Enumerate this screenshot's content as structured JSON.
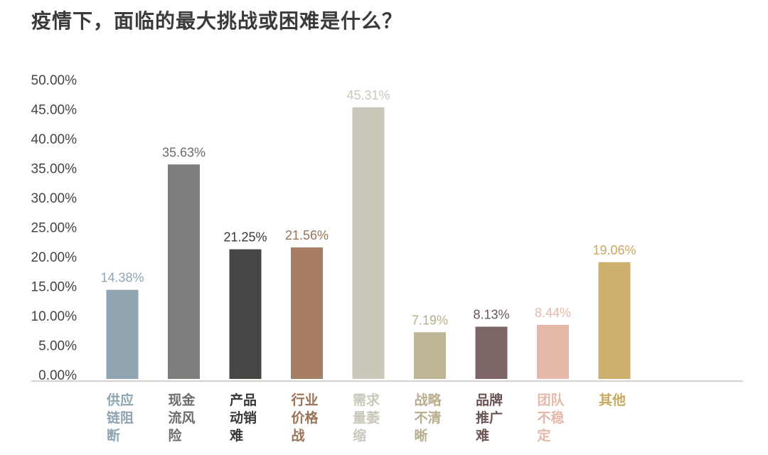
{
  "chart_data": {
    "type": "bar",
    "title": "疫情下，面临的最大挑战或困难是什么？",
    "categories": [
      "供应链阻断",
      "现金流风险",
      "产品动销难",
      "行业价格战",
      "需求量萎缩",
      "战略不清晰",
      "品牌推广难",
      "团队不稳定",
      "其他"
    ],
    "category_lines": [
      [
        "供应",
        "链阻",
        "断"
      ],
      [
        "现金",
        "流风",
        "险"
      ],
      [
        "产品",
        "动销",
        "难"
      ],
      [
        "行业",
        "价格",
        "战"
      ],
      [
        "需求",
        "量萎",
        "缩"
      ],
      [
        "战略",
        "不清",
        "晰"
      ],
      [
        "品牌",
        "推广",
        "难"
      ],
      [
        "团队",
        "不稳",
        "定"
      ],
      [
        "其他"
      ]
    ],
    "values": [
      14.38,
      35.63,
      21.25,
      21.56,
      45.31,
      7.19,
      8.13,
      8.44,
      19.06
    ],
    "value_labels": [
      "14.38%",
      "35.63%",
      "21.25%",
      "21.56%",
      "45.31%",
      "7.19%",
      "8.13%",
      "8.44%",
      "19.06%"
    ],
    "colors": [
      "#8fa5b1",
      "#7f7c7c",
      "#484644",
      "#a57e63",
      "#c9c8bb",
      "#bfb597",
      "#7d6465",
      "#e5b9aa",
      "#cdb06d"
    ],
    "label_colors": [
      "#8fa5b1",
      "#6f6c6c",
      "#3a3836",
      "#9a7358",
      "#c9c8bb",
      "#b8ad8d",
      "#6d5455",
      "#e5b9aa",
      "#c9a95e"
    ],
    "ylim": [
      0,
      50
    ],
    "yticks": [
      "0.00%",
      "5.00%",
      "10.00%",
      "15.00%",
      "20.00%",
      "25.00%",
      "30.00%",
      "35.00%",
      "40.00%",
      "45.00%",
      "50.00%"
    ],
    "xlabel": "",
    "ylabel": "",
    "grid": false,
    "legend": "none"
  }
}
